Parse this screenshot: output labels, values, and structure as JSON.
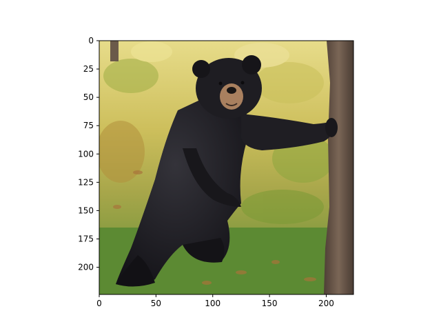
{
  "figure": {
    "image_subject": "black bear standing upright beside a tree trunk in a grassy forest",
    "colors": {
      "background": "#ffffff",
      "axes": "#000000",
      "bear_fur": "#1c1b1f",
      "bear_muzzle": "#b08a68",
      "tree_bark": "#6e5a4c",
      "foliage_light": "#d8cf6a",
      "foliage_dark": "#6f8f2f",
      "grass": "#5f8f34"
    }
  },
  "chart_data": {
    "type": "image",
    "title": "",
    "xlabel": "",
    "ylabel": "",
    "xlim": [
      0,
      224
    ],
    "ylim": [
      224,
      0
    ],
    "x_ticks": [
      0,
      50,
      100,
      150,
      200
    ],
    "y_ticks": [
      0,
      25,
      50,
      75,
      100,
      125,
      150,
      175,
      200
    ],
    "x_tick_labels": [
      "0",
      "50",
      "100",
      "150",
      "200"
    ],
    "y_tick_labels": [
      "0",
      "25",
      "50",
      "75",
      "100",
      "125",
      "150",
      "175",
      "200"
    ]
  }
}
